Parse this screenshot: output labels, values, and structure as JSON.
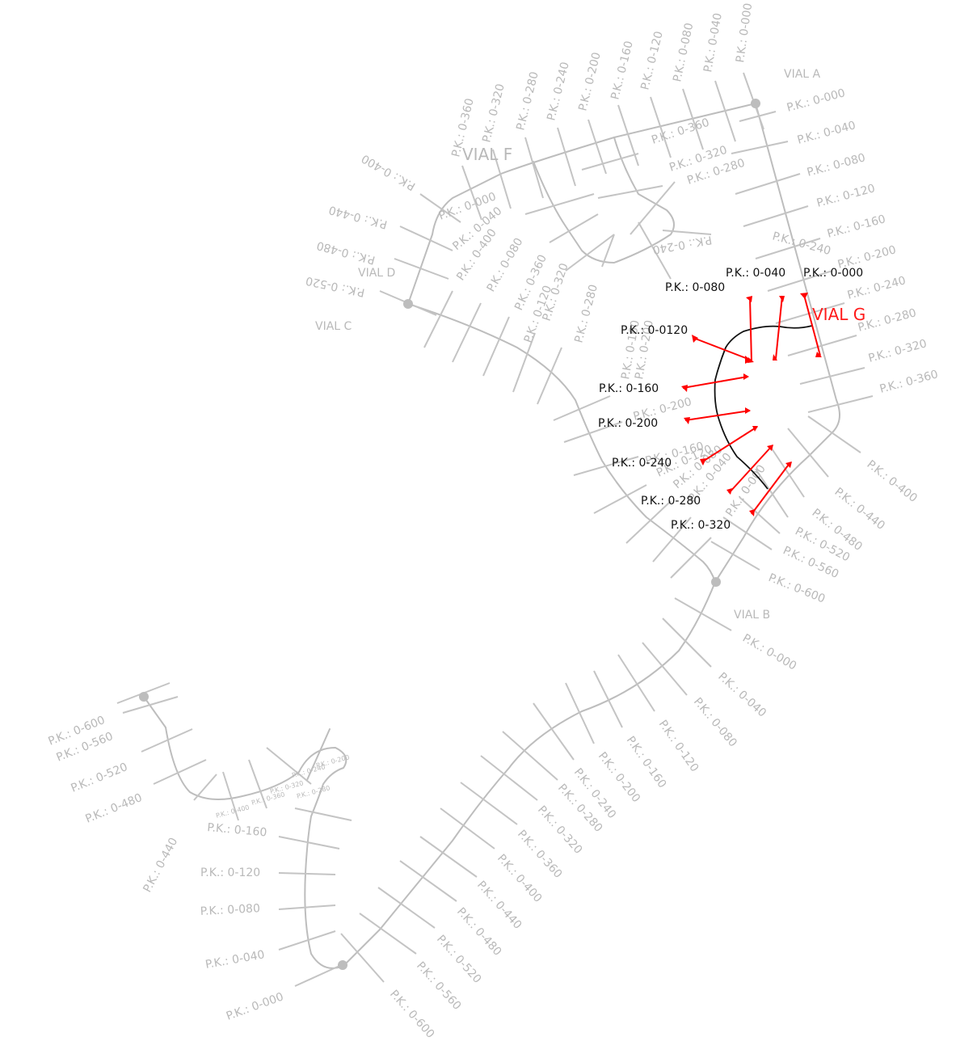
{
  "roads": {
    "a": "VIAL A",
    "b": "VIAL B",
    "c": "VIAL C",
    "d": "VIAL D",
    "f": "VIAL F",
    "g": "VIAL G"
  },
  "labels": {
    "a": [
      "P.K.: 0-000",
      "P.K.: 0-040",
      "P.K.: 0-080",
      "P.K.: 0-120",
      "P.K.: 0-160",
      "P.K.: 0-200",
      "P.K.: 0-240",
      "P.K.: 0-280",
      "P.K.: 0-320",
      "P.K.: 0-360",
      "P.K.: 0-400",
      "P.K.: 0-440",
      "P.K.: 0-480",
      "P.K.: 0-520",
      "P.K.: 0-560",
      "P.K.: 0-600"
    ],
    "b": [
      "P.K.: 0-000",
      "P.K.: 0-040",
      "P.K.: 0-080",
      "P.K.: 0-120",
      "P.K.: 0-160",
      "P.K.: 0-200",
      "P.K.: 0-240",
      "P.K.: 0-280",
      "P.K.: 0-320",
      "P.K.: 0-360",
      "P.K.: 0-400",
      "P.K.: 0-440",
      "P.K.: 0-480",
      "P.K.: 0-520",
      "P.K.: 0-560",
      "P.K.: 0-600"
    ],
    "f_top": [
      "P.K.: 0-000",
      "P.K.: 0-040",
      "P.K.: 0-080",
      "P.K.: 0-120",
      "P.K.: 0-160",
      "P.K.: 0-200",
      "P.K.: 0-240",
      "P.K.: 0-280",
      "P.K.: 0-320",
      "P.K.: 0-360"
    ],
    "f_left": [
      "P.K.: 0-400",
      "P.K.: 0-440",
      "P.K.: 0-480",
      "P.K.: 0-520"
    ],
    "d": [
      "P.K.: 0-000",
      "P.K.: 0-040",
      "P.K.: 0-400",
      "P.K.: 0-080",
      "P.K.: 0-360",
      "P.K.: 0-120",
      "P.K.: 0-320",
      "P.K.: 0-280",
      "P.K.: 0-240",
      "P.K.: 0-200"
    ],
    "inner": [
      "P.K.: 0-360",
      "P.K.: 0-320",
      "P.K.: 0-280",
      "P.K.: 0-240",
      "P.K.: 0-160",
      "P.K.: 0-200",
      "P.K.: 0-160",
      "P.K.: 0-120",
      "P.K.: 0-080",
      "P.K.: 0-040",
      "P.K.: 0-000"
    ],
    "c_bottom": [
      "P.K.: 0-000",
      "P.K.: 0-040",
      "P.K.: 0-080",
      "P.K.: 0-120",
      "P.K.: 0-160",
      "P.K.: 0-440",
      "P.K.: 0-480",
      "P.K.: 0-520",
      "P.K.: 0-560",
      "P.K.: 0-600"
    ],
    "c_small": [
      "P.K.: 0-400",
      "P.K.: 0-360",
      "P.K.: 0-320",
      "P.K.: 0-280",
      "P.K.: 0-240",
      "P.K.: 0-200"
    ],
    "g": [
      "P.K.: 0-000",
      "P.K.: 0-040",
      "P.K.: 0-080",
      "P.K.: 0-0120",
      "P.K.: 0-160",
      "P.K.: 0-200",
      "P.K.: 0-240",
      "P.K.: 0-280",
      "P.K.: 0-320"
    ]
  }
}
